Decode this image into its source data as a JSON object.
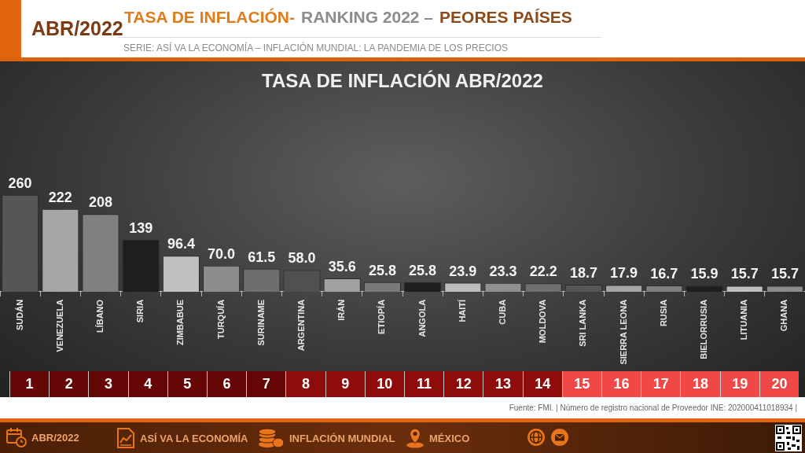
{
  "chart_data": {
    "type": "bar",
    "title": "TASA DE INFLACIÓN ABR/2022",
    "subtitle": "SERIE: ASÍ VA LA ECONOMÍA – INFLACIÓN MUNDIAL: LA PANDEMIA DE LOS PRECIOS",
    "categories": [
      "SUDÁN",
      "VENEZUELA",
      "LÍBANO",
      "SIRIA",
      "ZIMBABUE",
      "TURQUÍA",
      "SURINAME",
      "ARGENTINA",
      "IRÁN",
      "ETIOPÍA",
      "ANGOLA",
      "HAITÍ",
      "CUBA",
      "MOLDOVA",
      "SRI LANKA",
      "SIERRA LEONA",
      "RUSIA",
      "BIELORRUSIA",
      "LITUANIA",
      "GHANA"
    ],
    "values": [
      260,
      222,
      208,
      139,
      96.4,
      70.0,
      61.5,
      58.0,
      35.6,
      25.8,
      25.8,
      23.9,
      23.3,
      22.2,
      18.7,
      17.9,
      16.7,
      15.9,
      15.7,
      15.7
    ],
    "value_labels": [
      "260",
      "222",
      "208",
      "139",
      "96.4",
      "70.0",
      "61.5",
      "58.0",
      "35.6",
      "25.8",
      "25.8",
      "23.9",
      "23.3",
      "22.2",
      "18.7",
      "17.9",
      "16.7",
      "15.9",
      "15.7",
      "15.7"
    ],
    "colors": [
      "#565656",
      "#a6a6a6",
      "#808080",
      "#1e1e1e",
      "#c0c0c0",
      "#8c8c8c",
      "#6e6e6e",
      "#505050",
      "#a0a0a0",
      "#7a7a7a",
      "#1e1e1e",
      "#bdbdbd",
      "#8f8f8f",
      "#6e6e6e",
      "#565656",
      "#a6a6a6",
      "#808080",
      "#1e1e1e",
      "#c0c0c0",
      "#8c8c8c"
    ],
    "tick_labels": "x",
    "annotations": [
      "ABR/2022",
      "TASA DE INFLACIÓN-",
      "RANKING 2022 –",
      "PEORES PAÍSES",
      "1",
      "2",
      "3",
      "4",
      "5",
      "6",
      "7",
      "8",
      "9",
      "10",
      "11",
      "12",
      "13",
      "14",
      "15",
      "16",
      "17",
      "18",
      "19",
      "20",
      "ABR/2022",
      "ASÍ VA LA ECONOMÍA",
      "INFLACIÓN MUNDIAL",
      "MÉXICO",
      "Fuente: FMI. | Número de registro nacional de Proveedor INE: 202000411018934 |"
    ]
  }
}
